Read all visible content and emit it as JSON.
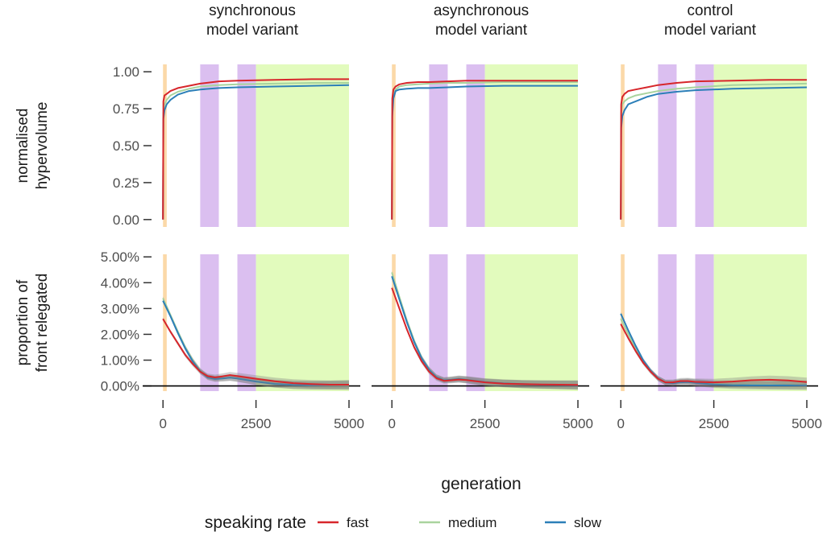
{
  "chart_data": {
    "type": "line",
    "facet_columns": [
      "synchronous\nmodel variant",
      "asynchronous\nmodel variant",
      "control\nmodel variant"
    ],
    "xlabel": "generation",
    "x_ticks": [
      0,
      2500,
      5000
    ],
    "xlim": [
      -200,
      5000
    ],
    "legend": {
      "title": "speaking rate",
      "position": "bottom",
      "entries": [
        {
          "name": "fast",
          "color": "#d7262b"
        },
        {
          "name": "medium",
          "color": "#a9d39e"
        },
        {
          "name": "slow",
          "color": "#2c7fb8"
        }
      ]
    },
    "shaded_regions": [
      {
        "from": 0,
        "to": 100,
        "color": "#fbd9a8"
      },
      {
        "from": 1000,
        "to": 1500,
        "color": "#dbbff0"
      },
      {
        "from": 2000,
        "to": 2500,
        "color": "#dbbff0"
      },
      {
        "from": 2500,
        "to": 5000,
        "color": "#e2fbbd"
      }
    ],
    "rows": [
      {
        "ylabel": "normalised\nhypervolume",
        "ylim": [
          -0.05,
          1.05
        ],
        "y_ticks": [
          0,
          0.25,
          0.5,
          0.75,
          1.0
        ],
        "y_tick_labels": [
          "0.00",
          "0.25",
          "0.50",
          "0.75",
          "1.00"
        ],
        "zero_line": false,
        "panels": [
          {
            "series": [
              {
                "name": "fast",
                "x": [
                  0,
                  10,
                  40,
                  100,
                  200,
                  400,
                  700,
                  1000,
                  1500,
                  2000,
                  3000,
                  4000,
                  5000
                ],
                "y": [
                  0.0,
                  0.8,
                  0.84,
                  0.85,
                  0.87,
                  0.89,
                  0.905,
                  0.92,
                  0.935,
                  0.94,
                  0.945,
                  0.95,
                  0.95
                ]
              },
              {
                "name": "medium",
                "x": [
                  0,
                  10,
                  40,
                  100,
                  200,
                  400,
                  700,
                  1000,
                  1500,
                  2000,
                  3000,
                  4000,
                  5000
                ],
                "y": [
                  0.0,
                  0.72,
                  0.78,
                  0.81,
                  0.84,
                  0.865,
                  0.885,
                  0.9,
                  0.91,
                  0.915,
                  0.92,
                  0.925,
                  0.925
                ]
              },
              {
                "name": "slow",
                "x": [
                  0,
                  10,
                  40,
                  100,
                  200,
                  400,
                  700,
                  1000,
                  1500,
                  2000,
                  3000,
                  4000,
                  5000
                ],
                "y": [
                  0.0,
                  0.68,
                  0.74,
                  0.78,
                  0.81,
                  0.845,
                  0.87,
                  0.88,
                  0.89,
                  0.895,
                  0.9,
                  0.905,
                  0.91
                ]
              }
            ]
          },
          {
            "series": [
              {
                "name": "fast",
                "x": [
                  0,
                  10,
                  40,
                  100,
                  200,
                  400,
                  700,
                  1000,
                  1500,
                  2000,
                  3000,
                  4000,
                  5000
                ],
                "y": [
                  0.0,
                  0.82,
                  0.88,
                  0.9,
                  0.915,
                  0.925,
                  0.93,
                  0.93,
                  0.935,
                  0.94,
                  0.94,
                  0.94,
                  0.94
                ]
              },
              {
                "name": "medium",
                "x": [
                  0,
                  10,
                  40,
                  100,
                  200,
                  400,
                  700,
                  1000,
                  1500,
                  2000,
                  3000,
                  4000,
                  5000
                ],
                "y": [
                  0.0,
                  0.78,
                  0.85,
                  0.88,
                  0.9,
                  0.91,
                  0.915,
                  0.92,
                  0.925,
                  0.925,
                  0.93,
                  0.93,
                  0.93
                ]
              },
              {
                "name": "slow",
                "x": [
                  0,
                  10,
                  40,
                  100,
                  200,
                  400,
                  700,
                  1000,
                  1500,
                  2000,
                  3000,
                  4000,
                  5000
                ],
                "y": [
                  0.0,
                  0.7,
                  0.82,
                  0.87,
                  0.88,
                  0.885,
                  0.89,
                  0.89,
                  0.895,
                  0.9,
                  0.905,
                  0.905,
                  0.905
                ]
              }
            ]
          },
          {
            "series": [
              {
                "name": "fast",
                "x": [
                  0,
                  10,
                  40,
                  100,
                  200,
                  400,
                  700,
                  1000,
                  1500,
                  2000,
                  3000,
                  4000,
                  5000
                ],
                "y": [
                  0.0,
                  0.78,
                  0.83,
                  0.85,
                  0.87,
                  0.88,
                  0.895,
                  0.91,
                  0.925,
                  0.935,
                  0.94,
                  0.945,
                  0.945
                ]
              },
              {
                "name": "medium",
                "x": [
                  0,
                  10,
                  40,
                  100,
                  200,
                  400,
                  700,
                  1000,
                  1500,
                  2000,
                  3000,
                  4000,
                  5000
                ],
                "y": [
                  0.0,
                  0.72,
                  0.78,
                  0.8,
                  0.82,
                  0.84,
                  0.855,
                  0.87,
                  0.885,
                  0.895,
                  0.91,
                  0.915,
                  0.92
                ]
              },
              {
                "name": "slow",
                "x": [
                  0,
                  10,
                  40,
                  100,
                  200,
                  400,
                  700,
                  1000,
                  1500,
                  2000,
                  3000,
                  4000,
                  5000
                ],
                "y": [
                  0.0,
                  0.62,
                  0.7,
                  0.74,
                  0.78,
                  0.8,
                  0.83,
                  0.85,
                  0.865,
                  0.875,
                  0.885,
                  0.89,
                  0.895
                ]
              }
            ]
          }
        ]
      },
      {
        "ylabel": "proportion of\nfront relegated",
        "ylim": [
          -0.002,
          0.051
        ],
        "y_ticks": [
          0,
          0.01,
          0.02,
          0.03,
          0.04,
          0.05
        ],
        "y_tick_labels": [
          "0.00%",
          "1.00%",
          "2.00%",
          "3.00%",
          "4.00%",
          "5.00%"
        ],
        "zero_line": true,
        "panels": [
          {
            "series": [
              {
                "name": "fast",
                "x": [
                  0,
                  200,
                  400,
                  600,
                  800,
                  1000,
                  1200,
                  1400,
                  1600,
                  1800,
                  2000,
                  2500,
                  3000,
                  3500,
                  4000,
                  4500,
                  5000
                ],
                "y": [
                  0.026,
                  0.021,
                  0.0165,
                  0.012,
                  0.0085,
                  0.0055,
                  0.0038,
                  0.0033,
                  0.0037,
                  0.0042,
                  0.0038,
                  0.0028,
                  0.0018,
                  0.0011,
                  0.0007,
                  0.0005,
                  0.0005
                ]
              },
              {
                "name": "medium",
                "x": [
                  0,
                  200,
                  400,
                  600,
                  800,
                  1000,
                  1200,
                  1400,
                  1600,
                  1800,
                  2000,
                  2500,
                  3000,
                  3500,
                  4000,
                  4500,
                  5000
                ],
                "y": [
                  0.034,
                  0.0275,
                  0.021,
                  0.015,
                  0.01,
                  0.006,
                  0.0035,
                  0.0028,
                  0.003,
                  0.0033,
                  0.003,
                  0.0018,
                  0.0009,
                  0.0004,
                  0.0002,
                  0.0002,
                  0.0002
                ]
              },
              {
                "name": "slow",
                "x": [
                  0,
                  200,
                  400,
                  600,
                  800,
                  1000,
                  1200,
                  1400,
                  1600,
                  1800,
                  2000,
                  2500,
                  3000,
                  3500,
                  4000,
                  4500,
                  5000
                ],
                "y": [
                  0.033,
                  0.027,
                  0.0205,
                  0.0145,
                  0.0095,
                  0.0057,
                  0.0033,
                  0.0027,
                  0.0029,
                  0.0032,
                  0.0029,
                  0.0017,
                  0.0008,
                  0.0004,
                  0.0003,
                  0.0004,
                  0.0005
                ]
              }
            ]
          },
          {
            "series": [
              {
                "name": "fast",
                "x": [
                  0,
                  200,
                  400,
                  600,
                  800,
                  1000,
                  1200,
                  1400,
                  1600,
                  1800,
                  2000,
                  2500,
                  3000,
                  3500,
                  4000,
                  4500,
                  5000
                ],
                "y": [
                  0.038,
                  0.03,
                  0.022,
                  0.015,
                  0.0095,
                  0.0055,
                  0.003,
                  0.002,
                  0.0022,
                  0.0025,
                  0.0023,
                  0.0014,
                  0.0009,
                  0.0007,
                  0.0006,
                  0.0005,
                  0.0004
                ]
              },
              {
                "name": "medium",
                "x": [
                  0,
                  200,
                  400,
                  600,
                  800,
                  1000,
                  1200,
                  1400,
                  1600,
                  1800,
                  2000,
                  2500,
                  3000,
                  3500,
                  4000,
                  4500,
                  5000
                ],
                "y": [
                  0.044,
                  0.0345,
                  0.0255,
                  0.0175,
                  0.011,
                  0.0065,
                  0.0035,
                  0.0023,
                  0.0025,
                  0.0028,
                  0.0025,
                  0.0016,
                  0.0011,
                  0.0008,
                  0.0006,
                  0.0005,
                  0.0004
                ]
              },
              {
                "name": "slow",
                "x": [
                  0,
                  200,
                  400,
                  600,
                  800,
                  1000,
                  1200,
                  1400,
                  1600,
                  1800,
                  2000,
                  2500,
                  3000,
                  3500,
                  4000,
                  4500,
                  5000
                ],
                "y": [
                  0.0425,
                  0.0335,
                  0.0248,
                  0.017,
                  0.0107,
                  0.0063,
                  0.0034,
                  0.0022,
                  0.0024,
                  0.0027,
                  0.0024,
                  0.0015,
                  0.001,
                  0.0007,
                  0.0005,
                  0.0004,
                  0.0003
                ]
              }
            ]
          },
          {
            "series": [
              {
                "name": "fast",
                "x": [
                  0,
                  200,
                  400,
                  600,
                  800,
                  1000,
                  1200,
                  1400,
                  1600,
                  1800,
                  2000,
                  2500,
                  3000,
                  3500,
                  4000,
                  4500,
                  5000
                ],
                "y": [
                  0.024,
                  0.0185,
                  0.0135,
                  0.009,
                  0.0055,
                  0.0028,
                  0.0014,
                  0.0014,
                  0.0019,
                  0.0019,
                  0.0016,
                  0.0014,
                  0.0017,
                  0.0022,
                  0.0024,
                  0.0021,
                  0.0015
                ]
              },
              {
                "name": "medium",
                "x": [
                  0,
                  200,
                  400,
                  600,
                  800,
                  1000,
                  1200,
                  1400,
                  1600,
                  1800,
                  2000,
                  2500,
                  3000,
                  3500,
                  4000,
                  4500,
                  5000
                ],
                "y": [
                  0.026,
                  0.02,
                  0.0145,
                  0.0095,
                  0.0058,
                  0.0029,
                  0.0013,
                  0.0012,
                  0.0016,
                  0.0017,
                  0.0013,
                  0.0008,
                  0.0006,
                  0.0005,
                  0.0004,
                  0.0004,
                  0.0004
                ]
              },
              {
                "name": "slow",
                "x": [
                  0,
                  200,
                  400,
                  600,
                  800,
                  1000,
                  1200,
                  1400,
                  1600,
                  1800,
                  2000,
                  2500,
                  3000,
                  3500,
                  4000,
                  4500,
                  5000
                ],
                "y": [
                  0.028,
                  0.0215,
                  0.0155,
                  0.01,
                  0.006,
                  0.003,
                  0.0013,
                  0.0011,
                  0.0014,
                  0.0015,
                  0.0012,
                  0.0006,
                  0.0003,
                  0.0002,
                  0.0002,
                  0.0002,
                  0.0002
                ]
              }
            ]
          }
        ]
      }
    ]
  }
}
